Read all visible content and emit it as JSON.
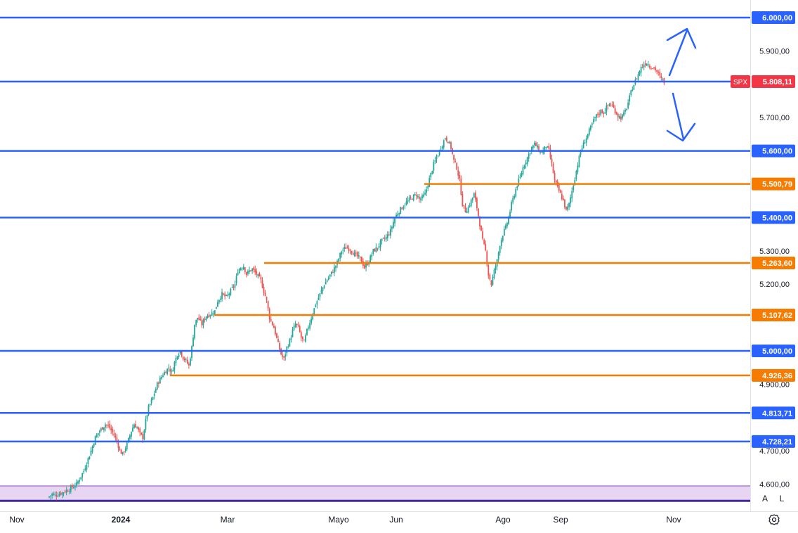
{
  "colors": {
    "up": "#26a69a",
    "down": "#ef5350",
    "support_blue": "#2962ff",
    "level_orange": "#f57c00",
    "zone_fill": "#e8d5f2",
    "zone_border": "#8e44ad",
    "last_price": "#f23645",
    "axis_text": "#131722",
    "axis_border": "#e0e3eb"
  },
  "symbol": {
    "ticker": "SPX",
    "last_price_label": "5.808,11",
    "last_price": 5808.11
  },
  "axis": {
    "y_ticks": [
      {
        "value": 5900,
        "label": "5.900,00"
      },
      {
        "value": 5700,
        "label": "5.700,00"
      },
      {
        "value": 5300,
        "label": "5.300,00"
      },
      {
        "value": 5200,
        "label": "5.200,00"
      },
      {
        "value": 4900,
        "label": "4.900,00"
      },
      {
        "value": 4700,
        "label": "4.700,00"
      },
      {
        "value": 4600,
        "label": "4.600,00"
      }
    ],
    "x_ticks": [
      {
        "label": "Nov",
        "bold": false
      },
      {
        "label": "2024",
        "bold": true
      },
      {
        "label": "Mar",
        "bold": false
      },
      {
        "label": "Mayo",
        "bold": false
      },
      {
        "label": "Jun",
        "bold": false
      },
      {
        "label": "Ago",
        "bold": false
      },
      {
        "label": "Sep",
        "bold": false
      },
      {
        "label": "Nov",
        "bold": false
      }
    ]
  },
  "levels": [
    {
      "value": 6000.0,
      "label": "6.000,00",
      "color": "blue"
    },
    {
      "value": 5808.11,
      "label": "5.808,11",
      "color": "blue"
    },
    {
      "value": 5600.0,
      "label": "5.600,00",
      "color": "blue"
    },
    {
      "value": 5500.79,
      "label": "5.500,79",
      "color": "orange"
    },
    {
      "value": 5400.0,
      "label": "5.400,00",
      "color": "blue"
    },
    {
      "value": 5263.6,
      "label": "5.263,60",
      "color": "orange"
    },
    {
      "value": 5107.62,
      "label": "5.107,62",
      "color": "orange"
    },
    {
      "value": 5000.0,
      "label": "5.000,00",
      "color": "blue"
    },
    {
      "value": 4926.36,
      "label": "4.926,36",
      "color": "orange"
    },
    {
      "value": 4813.71,
      "label": "4.813,71",
      "color": "blue"
    },
    {
      "value": 4728.21,
      "label": "4.728,21",
      "color": "blue"
    }
  ],
  "zone": {
    "low": 4550,
    "high": 4595
  },
  "arrows": [
    {
      "name": "bullish-scenario-arrow",
      "direction": "up"
    },
    {
      "name": "bearish-scenario-arrow",
      "direction": "down"
    }
  ],
  "buttons": {
    "auto_label": "A",
    "log_label": "L"
  },
  "chart_data": {
    "type": "candlestick",
    "symbol": "SPX",
    "y_range": [
      4560,
      6050
    ],
    "x_labels": [
      "Nov",
      "2024",
      "Mar",
      "Mayo",
      "Jun",
      "Ago",
      "Sep",
      "Nov"
    ],
    "horizontal_levels": [
      6000.0,
      5808.11,
      5600.0,
      5500.79,
      5400.0,
      5263.6,
      5107.62,
      5000.0,
      4926.36,
      4813.71,
      4728.21
    ],
    "close_path": [
      [
        0,
        4560
      ],
      [
        3,
        4570
      ],
      [
        6,
        4568
      ],
      [
        10,
        4575
      ],
      [
        15,
        4585
      ],
      [
        20,
        4600
      ],
      [
        25,
        4640
      ],
      [
        30,
        4700
      ],
      [
        33,
        4740
      ],
      [
        36,
        4760
      ],
      [
        38,
        4770
      ],
      [
        40,
        4780
      ],
      [
        42,
        4775
      ],
      [
        45,
        4755
      ],
      [
        48,
        4730
      ],
      [
        50,
        4700
      ],
      [
        52,
        4690
      ],
      [
        55,
        4720
      ],
      [
        58,
        4760
      ],
      [
        60,
        4780
      ],
      [
        62,
        4770
      ],
      [
        64,
        4750
      ],
      [
        66,
        4740
      ],
      [
        68,
        4790
      ],
      [
        70,
        4830
      ],
      [
        73,
        4860
      ],
      [
        76,
        4900
      ],
      [
        80,
        4930
      ],
      [
        84,
        4950
      ],
      [
        86,
        4935
      ],
      [
        88,
        4965
      ],
      [
        90,
        4990
      ],
      [
        92,
        5000
      ],
      [
        94,
        4980
      ],
      [
        96,
        4970
      ],
      [
        98,
        4955
      ],
      [
        100,
        5010
      ],
      [
        102,
        5080
      ],
      [
        104,
        5100
      ],
      [
        107,
        5080
      ],
      [
        110,
        5105
      ],
      [
        113,
        5110
      ],
      [
        116,
        5120
      ],
      [
        118,
        5150
      ],
      [
        121,
        5170
      ],
      [
        124,
        5160
      ],
      [
        127,
        5180
      ],
      [
        130,
        5200
      ],
      [
        132,
        5240
      ],
      [
        134,
        5250
      ],
      [
        136,
        5255
      ],
      [
        138,
        5230
      ],
      [
        140,
        5240
      ],
      [
        142,
        5245
      ],
      [
        145,
        5230
      ],
      [
        148,
        5210
      ],
      [
        150,
        5180
      ],
      [
        152,
        5150
      ],
      [
        154,
        5100
      ],
      [
        157,
        5070
      ],
      [
        160,
        5020
      ],
      [
        162,
        4990
      ],
      [
        164,
        4975
      ],
      [
        166,
        5010
      ],
      [
        168,
        5030
      ],
      [
        170,
        5060
      ],
      [
        172,
        5080
      ],
      [
        174,
        5070
      ],
      [
        176,
        5040
      ],
      [
        178,
        5025
      ],
      [
        180,
        5060
      ],
      [
        183,
        5100
      ],
      [
        186,
        5140
      ],
      [
        189,
        5170
      ],
      [
        192,
        5200
      ],
      [
        195,
        5220
      ],
      [
        198,
        5240
      ],
      [
        201,
        5265
      ],
      [
        204,
        5300
      ],
      [
        207,
        5310
      ],
      [
        210,
        5305
      ],
      [
        213,
        5290
      ],
      [
        216,
        5280
      ],
      [
        218,
        5270
      ],
      [
        220,
        5250
      ],
      [
        223,
        5270
      ],
      [
        226,
        5300
      ],
      [
        229,
        5310
      ],
      [
        232,
        5330
      ],
      [
        235,
        5340
      ],
      [
        238,
        5360
      ],
      [
        241,
        5400
      ],
      [
        244,
        5420
      ],
      [
        247,
        5435
      ],
      [
        250,
        5450
      ],
      [
        253,
        5460
      ],
      [
        256,
        5470
      ],
      [
        258,
        5455
      ],
      [
        260,
        5460
      ],
      [
        262,
        5470
      ],
      [
        264,
        5500
      ],
      [
        266,
        5530
      ],
      [
        268,
        5560
      ],
      [
        270,
        5580
      ],
      [
        272,
        5600
      ],
      [
        274,
        5620
      ],
      [
        276,
        5640
      ],
      [
        278,
        5630
      ],
      [
        280,
        5610
      ],
      [
        282,
        5570
      ],
      [
        284,
        5550
      ],
      [
        286,
        5510
      ],
      [
        288,
        5440
      ],
      [
        290,
        5420
      ],
      [
        292,
        5430
      ],
      [
        294,
        5450
      ],
      [
        296,
        5470
      ],
      [
        298,
        5430
      ],
      [
        300,
        5380
      ],
      [
        302,
        5330
      ],
      [
        304,
        5300
      ],
      [
        306,
        5230
      ],
      [
        308,
        5200
      ],
      [
        310,
        5240
      ],
      [
        312,
        5270
      ],
      [
        314,
        5320
      ],
      [
        316,
        5350
      ],
      [
        318,
        5370
      ],
      [
        320,
        5400
      ],
      [
        322,
        5440
      ],
      [
        324,
        5470
      ],
      [
        326,
        5500
      ],
      [
        328,
        5520
      ],
      [
        330,
        5550
      ],
      [
        332,
        5570
      ],
      [
        334,
        5590
      ],
      [
        336,
        5610
      ],
      [
        338,
        5620
      ],
      [
        340,
        5610
      ],
      [
        342,
        5595
      ],
      [
        344,
        5600
      ],
      [
        346,
        5615
      ],
      [
        348,
        5600
      ],
      [
        350,
        5560
      ],
      [
        352,
        5510
      ],
      [
        354,
        5490
      ],
      [
        356,
        5470
      ],
      [
        358,
        5450
      ],
      [
        360,
        5420
      ],
      [
        362,
        5440
      ],
      [
        364,
        5480
      ],
      [
        366,
        5520
      ],
      [
        368,
        5560
      ],
      [
        370,
        5600
      ],
      [
        372,
        5620
      ],
      [
        374,
        5640
      ],
      [
        376,
        5660
      ],
      [
        378,
        5680
      ],
      [
        380,
        5700
      ],
      [
        382,
        5710
      ],
      [
        384,
        5720
      ],
      [
        386,
        5715
      ],
      [
        388,
        5730
      ],
      [
        390,
        5740
      ],
      [
        392,
        5735
      ],
      [
        394,
        5720
      ],
      [
        396,
        5705
      ],
      [
        398,
        5700
      ],
      [
        400,
        5710
      ],
      [
        402,
        5730
      ],
      [
        404,
        5760
      ],
      [
        406,
        5790
      ],
      [
        408,
        5810
      ],
      [
        410,
        5830
      ],
      [
        412,
        5850
      ],
      [
        414,
        5860
      ],
      [
        416,
        5865
      ],
      [
        418,
        5855
      ],
      [
        420,
        5850
      ],
      [
        422,
        5845
      ],
      [
        424,
        5830
      ],
      [
        426,
        5815
      ],
      [
        428,
        5808.11
      ]
    ]
  }
}
